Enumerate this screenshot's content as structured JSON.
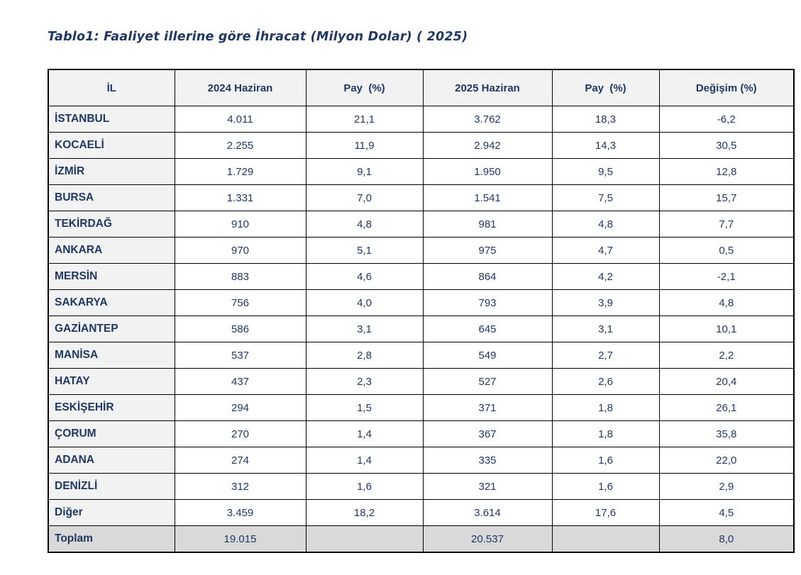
{
  "title": "Tablo1: Faaliyet illerine göre İhracat (Milyon Dolar) ( 2025)",
  "table": {
    "columns": [
      "İL",
      "2024 Haziran",
      "Pay  (%)",
      "2025 Haziran",
      "Pay  (%)",
      "Değişim (%)"
    ],
    "rows": [
      {
        "il": "İSTANBUL",
        "h2024": "4.011",
        "pay2024": "21,1",
        "h2025": "3.762",
        "pay2025": "18,3",
        "degisim": "-6,2"
      },
      {
        "il": "KOCAELİ",
        "h2024": "2.255",
        "pay2024": "11,9",
        "h2025": "2.942",
        "pay2025": "14,3",
        "degisim": "30,5"
      },
      {
        "il": "İZMİR",
        "h2024": "1.729",
        "pay2024": "9,1",
        "h2025": "1.950",
        "pay2025": "9,5",
        "degisim": "12,8"
      },
      {
        "il": "BURSA",
        "h2024": "1.331",
        "pay2024": "7,0",
        "h2025": "1.541",
        "pay2025": "7,5",
        "degisim": "15,7"
      },
      {
        "il": "TEKİRDAĞ",
        "h2024": "910",
        "pay2024": "4,8",
        "h2025": "981",
        "pay2025": "4,8",
        "degisim": "7,7"
      },
      {
        "il": "ANKARA",
        "h2024": "970",
        "pay2024": "5,1",
        "h2025": "975",
        "pay2025": "4,7",
        "degisim": "0,5"
      },
      {
        "il": "MERSİN",
        "h2024": "883",
        "pay2024": "4,6",
        "h2025": "864",
        "pay2025": "4,2",
        "degisim": "-2,1"
      },
      {
        "il": "SAKARYA",
        "h2024": "756",
        "pay2024": "4,0",
        "h2025": "793",
        "pay2025": "3,9",
        "degisim": "4,8"
      },
      {
        "il": "GAZİANTEP",
        "h2024": "586",
        "pay2024": "3,1",
        "h2025": "645",
        "pay2025": "3,1",
        "degisim": "10,1"
      },
      {
        "il": "MANİSA",
        "h2024": "537",
        "pay2024": "2,8",
        "h2025": "549",
        "pay2025": "2,7",
        "degisim": "2,2"
      },
      {
        "il": "HATAY",
        "h2024": "437",
        "pay2024": "2,3",
        "h2025": "527",
        "pay2025": "2,6",
        "degisim": "20,4"
      },
      {
        "il": "ESKİŞEHİR",
        "h2024": "294",
        "pay2024": "1,5",
        "h2025": "371",
        "pay2025": "1,8",
        "degisim": "26,1"
      },
      {
        "il": "ÇORUM",
        "h2024": "270",
        "pay2024": "1,4",
        "h2025": "367",
        "pay2025": "1,8",
        "degisim": "35,8"
      },
      {
        "il": "ADANA",
        "h2024": "274",
        "pay2024": "1,4",
        "h2025": "335",
        "pay2025": "1,6",
        "degisim": "22,0"
      },
      {
        "il": "DENİZLİ",
        "h2024": "312",
        "pay2024": "1,6",
        "h2025": "321",
        "pay2025": "1,6",
        "degisim": "2,9"
      },
      {
        "il": "Diğer",
        "h2024": "3.459",
        "pay2024": "18,2",
        "h2025": "3.614",
        "pay2025": "17,6",
        "degisim": "4,5"
      }
    ],
    "total": {
      "il": "Toplam",
      "h2024": "19.015",
      "pay2024": "",
      "h2025": "20.537",
      "pay2025": "",
      "degisim": "8,0"
    }
  },
  "colors": {
    "text_navy": "#1F3864",
    "header_bg": "#F2F2F2",
    "province_column_bg": "#F2F2F2",
    "total_row_bg": "#D9D9D9",
    "border": "#000000",
    "page_bg": "#FFFFFF"
  }
}
